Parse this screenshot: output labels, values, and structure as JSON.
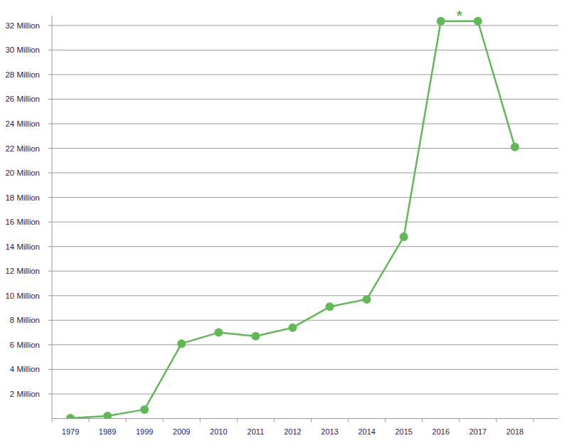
{
  "chart_data": {
    "type": "line",
    "categories": [
      "1979",
      "1989",
      "1999",
      "2009",
      "2010",
      "2011",
      "2012",
      "2013",
      "2014",
      "2015",
      "2016",
      "2017",
      "2018"
    ],
    "values": [
      0.03,
      0.2,
      0.73,
      6.1,
      7.0,
      6.7,
      7.4,
      9.1,
      9.7,
      14.8,
      32.35,
      32.35,
      22.1
    ],
    "color": "#62b857",
    "marker": "circle",
    "line_style": "solid",
    "annotation": "*",
    "ylim": [
      0,
      32.8
    ],
    "yticks": [
      {
        "value": 2,
        "label": "2 Million"
      },
      {
        "value": 4,
        "label": "4 Million"
      },
      {
        "value": 6,
        "label": "6 Million"
      },
      {
        "value": 8,
        "label": "8 Million"
      },
      {
        "value": 10,
        "label": "10 Million"
      },
      {
        "value": 12,
        "label": "12 Million"
      },
      {
        "value": 14,
        "label": "14 Million"
      },
      {
        "value": 16,
        "label": "16 Million"
      },
      {
        "value": 18,
        "label": "18 Million"
      },
      {
        "value": 20,
        "label": "20 Million"
      },
      {
        "value": 22,
        "label": "22 Million"
      },
      {
        "value": 24,
        "label": "24 Million"
      },
      {
        "value": 26,
        "label": "26 Million"
      },
      {
        "value": 28,
        "label": "28 Million"
      },
      {
        "value": 30,
        "label": "30 Million"
      },
      {
        "value": 32,
        "label": "32 Million"
      }
    ],
    "grid": true
  }
}
